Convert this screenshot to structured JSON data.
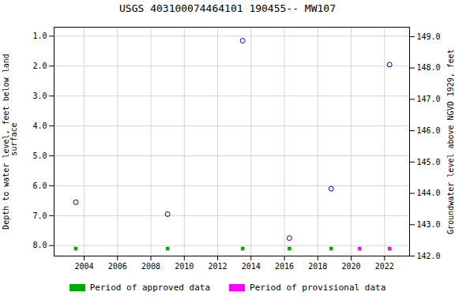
{
  "chart_data": {
    "type": "scatter",
    "title": "USGS 403100074464101 190455-- MW107",
    "y_label": "Depth to water level, feet below land\n surface",
    "y2_label": "Groundwater level above NGVD 1929, feet",
    "xlim": [
      2002.2,
      2023.5
    ],
    "xticks": [
      2004,
      2006,
      2008,
      2010,
      2012,
      2014,
      2016,
      2018,
      2020,
      2022
    ],
    "ylim": [
      8.35,
      0.7
    ],
    "yticks": [
      {
        "value": 1.0,
        "label": "1.0"
      },
      {
        "value": 2.0,
        "label": "2.0"
      },
      {
        "value": 3.0,
        "label": "3.0"
      },
      {
        "value": 4.0,
        "label": "4.0"
      },
      {
        "value": 5.0,
        "label": "5.0"
      },
      {
        "value": 6.0,
        "label": "6.0"
      },
      {
        "value": 7.0,
        "label": "7.0"
      },
      {
        "value": 8.0,
        "label": "8.0"
      }
    ],
    "y2lim": [
      142.0,
      149.3
    ],
    "y2ticks": [
      {
        "value": 142.0,
        "label": "142.0"
      },
      {
        "value": 143.0,
        "label": "143.0"
      },
      {
        "value": 144.0,
        "label": "144.0"
      },
      {
        "value": 145.0,
        "label": "145.0"
      },
      {
        "value": 146.0,
        "label": "146.0"
      },
      {
        "value": 147.0,
        "label": "147.0"
      },
      {
        "value": 148.0,
        "label": "148.0"
      },
      {
        "value": 149.0,
        "label": "149.0"
      }
    ],
    "series": [
      {
        "x": [
          2003.5,
          2009.0,
          2013.5,
          2016.3,
          2018.8,
          2022.3
        ],
        "values": [
          6.55,
          6.95,
          1.15,
          7.75,
          6.1,
          1.95
        ],
        "color": "#0000cc",
        "marker": "circle"
      },
      {
        "name": "Period of approved data",
        "x": [
          2003.5,
          2009.0,
          2013.5,
          2016.3,
          2018.8
        ],
        "values": [
          8.1,
          8.1,
          8.1,
          8.1,
          8.1
        ],
        "color": "#00aa00",
        "marker": "square"
      },
      {
        "name": "Period of provisional data",
        "x": [
          2020.5,
          2022.3
        ],
        "values": [
          8.1,
          8.1
        ],
        "color": "#ff00ff",
        "marker": "square"
      }
    ],
    "grid": true,
    "legend": "bottom"
  }
}
